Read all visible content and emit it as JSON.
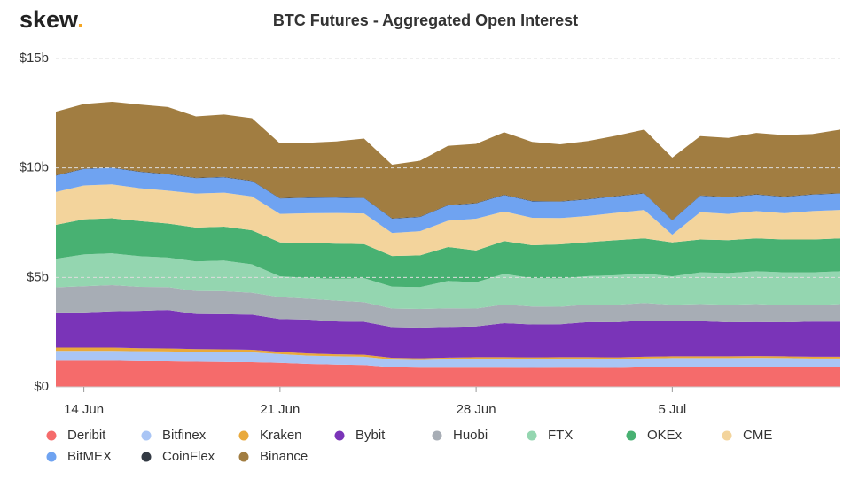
{
  "logo": {
    "text": "skew",
    "dot": "."
  },
  "chart_data": {
    "type": "stacked-area",
    "title": "BTC Futures - Aggregated Open Interest",
    "categories": [
      null,
      "14 Jun",
      null,
      null,
      null,
      null,
      null,
      null,
      "21 Jun",
      null,
      null,
      null,
      null,
      null,
      null,
      "28 Jun",
      null,
      null,
      null,
      null,
      null,
      null,
      "5 Jul",
      null,
      null,
      null,
      null,
      null,
      null
    ],
    "ylim": [
      0,
      15
    ],
    "yticks": [
      {
        "value": 0,
        "label": "$0"
      },
      {
        "value": 5,
        "label": "$5b"
      },
      {
        "value": 10,
        "label": "$10b"
      },
      {
        "value": 15,
        "label": "$15b"
      }
    ],
    "grid": true,
    "series": [
      {
        "name": "Deribit",
        "color": "#f56b6b",
        "values": [
          1.2,
          1.2,
          1.2,
          1.18,
          1.17,
          1.15,
          1.14,
          1.13,
          1.1,
          1.05,
          1.02,
          1.0,
          0.9,
          0.88,
          0.88,
          0.88,
          0.88,
          0.87,
          0.88,
          0.88,
          0.87,
          0.9,
          0.9,
          0.92,
          0.92,
          0.93,
          0.92,
          0.9,
          0.9
        ]
      },
      {
        "name": "Bitfinex",
        "color": "#a9c5f5",
        "values": [
          0.45,
          0.45,
          0.45,
          0.45,
          0.45,
          0.45,
          0.45,
          0.45,
          0.4,
          0.38,
          0.38,
          0.38,
          0.35,
          0.35,
          0.38,
          0.4,
          0.4,
          0.4,
          0.4,
          0.4,
          0.4,
          0.4,
          0.42,
          0.4,
          0.4,
          0.4,
          0.4,
          0.4,
          0.4
        ]
      },
      {
        "name": "Kraken",
        "color": "#e9a93b",
        "values": [
          0.15,
          0.15,
          0.15,
          0.14,
          0.14,
          0.13,
          0.13,
          0.12,
          0.1,
          0.1,
          0.09,
          0.09,
          0.08,
          0.08,
          0.08,
          0.08,
          0.08,
          0.08,
          0.08,
          0.08,
          0.08,
          0.08,
          0.08,
          0.08,
          0.08,
          0.08,
          0.08,
          0.08,
          0.08
        ]
      },
      {
        "name": "Bybit",
        "color": "#7a34b8",
        "values": [
          1.6,
          1.6,
          1.65,
          1.7,
          1.75,
          1.6,
          1.6,
          1.6,
          1.5,
          1.55,
          1.5,
          1.5,
          1.4,
          1.4,
          1.4,
          1.4,
          1.55,
          1.5,
          1.5,
          1.6,
          1.6,
          1.65,
          1.6,
          1.6,
          1.55,
          1.55,
          1.55,
          1.6,
          1.6
        ]
      },
      {
        "name": "Huobi",
        "color": "#a7adb5",
        "values": [
          1.15,
          1.2,
          1.2,
          1.1,
          1.05,
          1.05,
          1.05,
          1.0,
          1.0,
          0.95,
          0.95,
          0.9,
          0.85,
          0.85,
          0.85,
          0.82,
          0.85,
          0.82,
          0.8,
          0.8,
          0.8,
          0.8,
          0.75,
          0.78,
          0.8,
          0.82,
          0.78,
          0.75,
          0.8
        ]
      },
      {
        "name": "FTX",
        "color": "#94d6b0",
        "values": [
          1.3,
          1.45,
          1.45,
          1.4,
          1.35,
          1.35,
          1.4,
          1.3,
          0.95,
          0.95,
          1.0,
          1.1,
          1.0,
          1.0,
          1.25,
          1.2,
          1.4,
          1.3,
          1.3,
          1.3,
          1.35,
          1.35,
          1.3,
          1.45,
          1.45,
          1.5,
          1.5,
          1.5,
          1.5
        ]
      },
      {
        "name": "OKEx",
        "color": "#48b172",
        "values": [
          1.55,
          1.6,
          1.6,
          1.6,
          1.55,
          1.55,
          1.55,
          1.55,
          1.55,
          1.6,
          1.6,
          1.55,
          1.4,
          1.45,
          1.55,
          1.45,
          1.5,
          1.5,
          1.55,
          1.55,
          1.6,
          1.6,
          1.55,
          1.5,
          1.5,
          1.5,
          1.5,
          1.5,
          1.5
        ]
      },
      {
        "name": "CME",
        "color": "#f3d49c",
        "values": [
          1.5,
          1.55,
          1.55,
          1.5,
          1.5,
          1.55,
          1.55,
          1.55,
          1.3,
          1.35,
          1.4,
          1.4,
          1.05,
          1.1,
          1.2,
          1.45,
          1.35,
          1.25,
          1.2,
          1.2,
          1.25,
          1.3,
          0.35,
          1.25,
          1.2,
          1.25,
          1.2,
          1.3,
          1.3
        ]
      },
      {
        "name": "BitMEX",
        "color": "#6fa3f1",
        "values": [
          0.75,
          0.75,
          0.75,
          0.75,
          0.75,
          0.7,
          0.7,
          0.7,
          0.7,
          0.7,
          0.7,
          0.7,
          0.65,
          0.65,
          0.7,
          0.7,
          0.75,
          0.75,
          0.75,
          0.75,
          0.75,
          0.75,
          0.65,
          0.75,
          0.75,
          0.75,
          0.75,
          0.75,
          0.75
        ]
      },
      {
        "name": "CoinFlex",
        "color": "#333a44",
        "values": [
          0.02,
          0.02,
          0.02,
          0.02,
          0.02,
          0.02,
          0.02,
          0.02,
          0.02,
          0.02,
          0.02,
          0.02,
          0.02,
          0.02,
          0.02,
          0.02,
          0.02,
          0.02,
          0.02,
          0.02,
          0.02,
          0.02,
          0.02,
          0.02,
          0.02,
          0.02,
          0.02,
          0.02,
          0.02
        ]
      },
      {
        "name": "Binance",
        "color": "#a17d41",
        "values": [
          2.9,
          2.95,
          3.0,
          3.05,
          3.05,
          2.8,
          2.85,
          2.85,
          2.5,
          2.5,
          2.55,
          2.7,
          2.45,
          2.55,
          2.7,
          2.7,
          2.85,
          2.7,
          2.6,
          2.65,
          2.75,
          2.9,
          2.85,
          2.7,
          2.7,
          2.8,
          2.8,
          2.75,
          2.9
        ]
      }
    ]
  }
}
